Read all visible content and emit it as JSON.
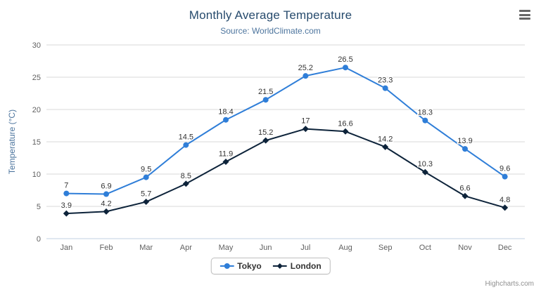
{
  "chart_data": {
    "type": "line",
    "title": "Monthly Average Temperature",
    "subtitle": "Source: WorldClimate.com",
    "categories": [
      "Jan",
      "Feb",
      "Mar",
      "Apr",
      "May",
      "Jun",
      "Jul",
      "Aug",
      "Sep",
      "Oct",
      "Nov",
      "Dec"
    ],
    "xlabel": "",
    "ylabel": "Temperature (°C)",
    "ylim": [
      0,
      30
    ],
    "ytick_interval": 5,
    "grid": "horizontal",
    "legend_position": "bottom-center",
    "series": [
      {
        "name": "Tokyo",
        "marker": "circle",
        "color": "#2f7ed8",
        "values": [
          7,
          6.9,
          9.5,
          14.5,
          18.4,
          21.5,
          25.2,
          26.5,
          23.3,
          18.3,
          13.9,
          9.6
        ]
      },
      {
        "name": "London",
        "marker": "diamond",
        "color": "#0d233a",
        "values": [
          3.9,
          4.2,
          5.7,
          8.5,
          11.9,
          15.2,
          17,
          16.6,
          14.2,
          10.3,
          6.6,
          4.8
        ]
      }
    ]
  },
  "credits": "Highcharts.com",
  "icons": {
    "context_menu": "hamburger-icon"
  },
  "colors": {
    "title": "#274b6d",
    "subtitle": "#4d759e",
    "gridline": "#d8d8d8",
    "axis_line": "#c0d0e0",
    "axis_label": "#606060"
  }
}
